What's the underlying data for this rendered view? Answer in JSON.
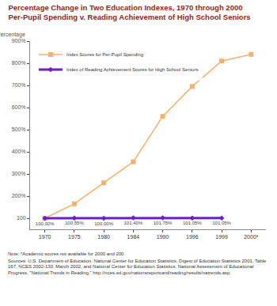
{
  "chart_data": {
    "type": "line",
    "title": "Percentage Change in Two Education Indexes, 1970 through 2000",
    "subtitle": "Per-Pupil Spending v. Reading Achievement of High School Seniors",
    "y_label": "Percentage",
    "categories": [
      "1970",
      "1975",
      "1980",
      "1984",
      "1990",
      "1996",
      "1999",
      "2000*"
    ],
    "series": [
      {
        "name": "Index Scores for Per-Pupil Spending",
        "color": "#f5b06b",
        "marker": "square",
        "values": [
          100,
          165,
          260,
          355,
          560,
          695,
          810,
          840
        ]
      },
      {
        "name": "Index of Reading Achievement Scores for High School Seniors",
        "color": "#6a1fc8",
        "marker": "diamond",
        "data_labels": true,
        "values": [
          100,
          100.55,
          100,
          101.4,
          101.75,
          101.05,
          101.05,
          null
        ],
        "value_labels": [
          "100.00%",
          "100.55%",
          "100.00%",
          "101.40%",
          "101.75%",
          "101.05%",
          "101.05%",
          null
        ]
      }
    ],
    "ylim": [
      50,
      900
    ],
    "yticks": [
      {
        "value": 100,
        "label": "100"
      },
      {
        "value": 200,
        "label": "200%"
      },
      {
        "value": 300,
        "label": "300%"
      },
      {
        "value": 400,
        "label": "400%"
      },
      {
        "value": 500,
        "label": "500%"
      },
      {
        "value": 600,
        "label": "600%"
      },
      {
        "value": 700,
        "label": "700%"
      },
      {
        "value": 800,
        "label": "800%"
      },
      {
        "value": 900,
        "label": "900%"
      }
    ],
    "grid": false,
    "legend": "top-left",
    "notes": [
      "Note: *Academic scores not available for 2000 and 200",
      "Sources: U.S. Department of Education, National Center for Education Statistics, Digest of Education Statistics 2001, Table 167, NCES 2002-130, March 2002, and National Center for Education Statistics, National Assessment of Educational Progress, \"National Trends in Reading,\" http://nces.ed.gov/nationsreportcard/reading/results/natrends.asp."
    ]
  }
}
